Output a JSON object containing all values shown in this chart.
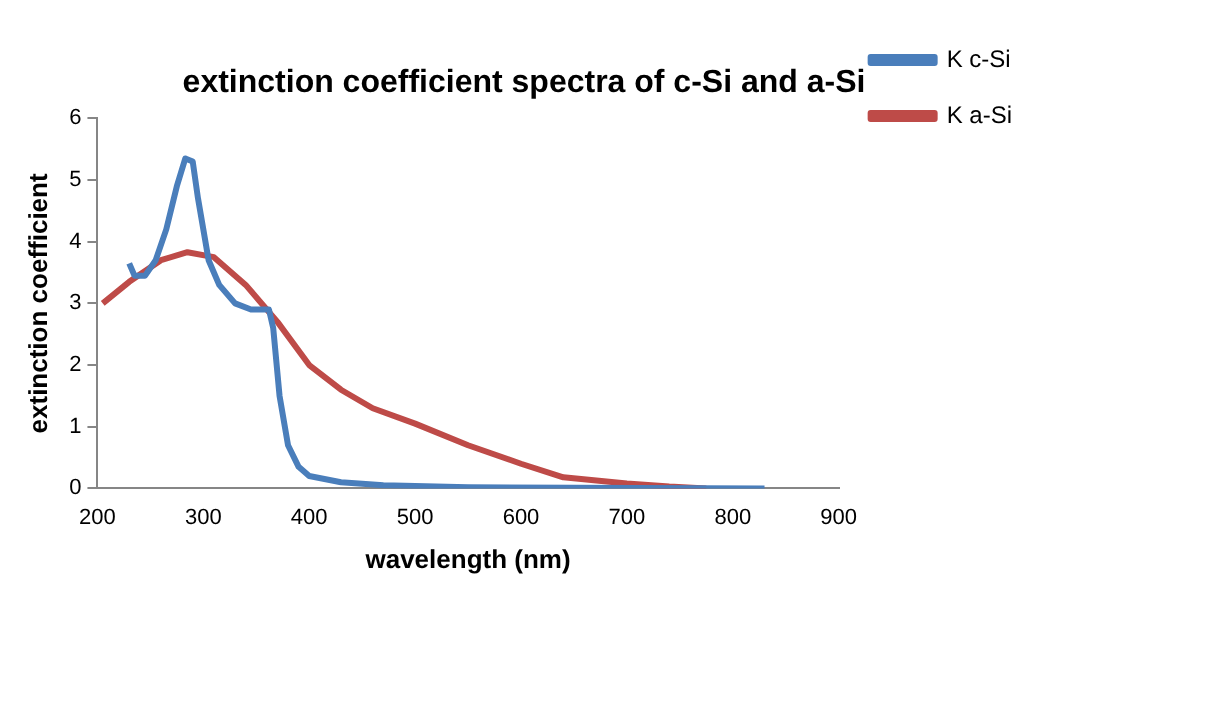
{
  "chart_data": {
    "type": "line",
    "title": "extinction coefficient spectra of c-Si and a-Si",
    "xlabel": "wavelength (nm)",
    "ylabel": "extinction coefficient",
    "xlim": [
      200,
      900
    ],
    "xticks": [
      200,
      300,
      400,
      500,
      600,
      700,
      800,
      900
    ],
    "ylim": [
      0,
      6
    ],
    "yticks": [
      0,
      1,
      2,
      3,
      4,
      5,
      6
    ],
    "grid": false,
    "legend": "right",
    "marker": "none",
    "line_style": "solid",
    "series": [
      {
        "name": "K c-Si",
        "color": "#4a7ebb",
        "x": [
          230,
          235,
          245,
          255,
          265,
          275,
          283,
          290,
          295,
          305,
          315,
          330,
          345,
          362,
          366,
          372,
          380,
          390,
          400,
          430,
          470,
          550,
          650,
          830
        ],
        "values": [
          3.65,
          3.45,
          3.45,
          3.7,
          4.2,
          4.9,
          5.35,
          5.3,
          4.7,
          3.7,
          3.3,
          3.0,
          2.9,
          2.9,
          2.6,
          1.5,
          0.7,
          0.35,
          0.2,
          0.1,
          0.05,
          0.02,
          0.01,
          0
        ]
      },
      {
        "name": "K a-Si",
        "color": "#be4b48",
        "x": [
          205,
          230,
          260,
          285,
          310,
          340,
          370,
          400,
          430,
          460,
          500,
          550,
          600,
          640,
          700,
          740,
          775
        ],
        "values": [
          3.0,
          3.35,
          3.7,
          3.83,
          3.75,
          3.3,
          2.7,
          2.0,
          1.6,
          1.3,
          1.05,
          0.7,
          0.4,
          0.18,
          0.08,
          0.03,
          0
        ]
      }
    ]
  }
}
